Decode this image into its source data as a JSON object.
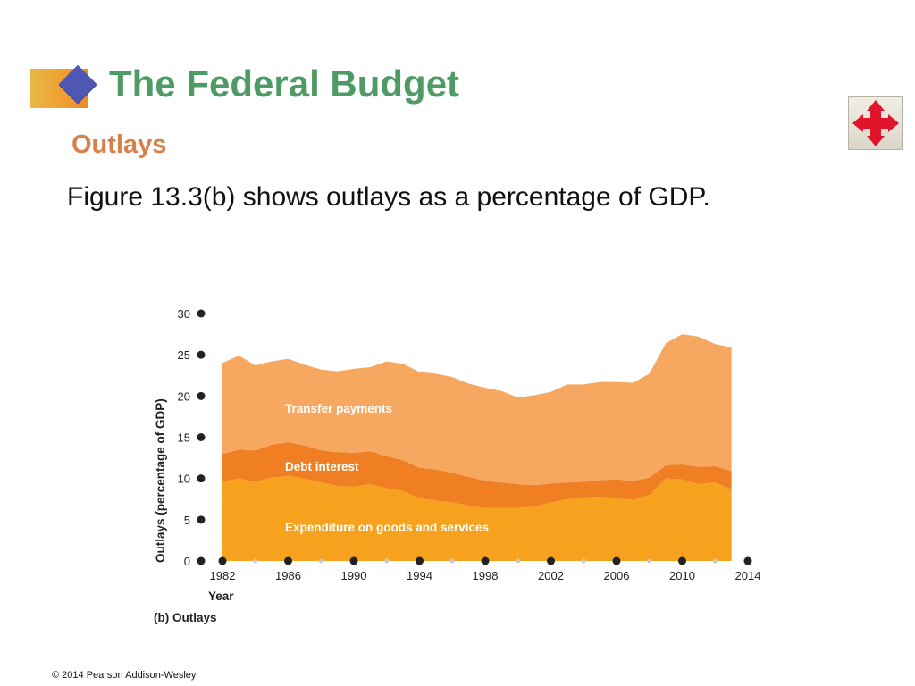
{
  "slide": {
    "title": "The Federal Budget",
    "subtitle": "Outlays",
    "body": "Figure 13.3(b) shows outlays as a percentage of GDP.",
    "copyright": "© 2014 Pearson Addison-Wesley",
    "nav_icon": "four-way-arrows-icon"
  },
  "colors": {
    "title": "#4f9b66",
    "subtitle": "#d7804a",
    "transfer_payments": "#f6a760",
    "debt_interest": "#ef7f22",
    "goods_services": "#f6a21e",
    "nav_arrows": "#e0142a"
  },
  "chart_data": {
    "type": "area",
    "stacked": true,
    "ylabel": "Outlays (percentage of GDP)",
    "xlabel": "Year",
    "caption": "(b) Outlays",
    "ylim": [
      0,
      30
    ],
    "yticks": [
      0,
      5,
      10,
      15,
      20,
      25,
      30
    ],
    "xlim": [
      1982,
      2014
    ],
    "xticks": [
      1982,
      1986,
      1990,
      1994,
      1998,
      2002,
      2006,
      2010,
      2014
    ],
    "x": [
      1982,
      1983,
      1984,
      1985,
      1986,
      1987,
      1988,
      1989,
      1990,
      1991,
      1992,
      1993,
      1994,
      1995,
      1996,
      1997,
      1998,
      1999,
      2000,
      2001,
      2002,
      2003,
      2004,
      2005,
      2006,
      2007,
      2008,
      2009,
      2010,
      2011,
      2012,
      2013
    ],
    "series": [
      {
        "name": "Expenditure on goods and services",
        "values": [
          9.6,
          10.0,
          9.6,
          10.1,
          10.3,
          10.0,
          9.5,
          9.1,
          9.0,
          9.3,
          8.8,
          8.5,
          7.6,
          7.3,
          7.1,
          6.7,
          6.4,
          6.4,
          6.4,
          6.6,
          7.1,
          7.5,
          7.7,
          7.8,
          7.6,
          7.4,
          8.0,
          10.0,
          9.9,
          9.3,
          9.5,
          8.7
        ]
      },
      {
        "name": "Debt interest",
        "values": [
          3.4,
          3.5,
          3.8,
          4.0,
          4.1,
          4.0,
          3.9,
          4.1,
          4.1,
          4.0,
          3.9,
          3.7,
          3.7,
          3.8,
          3.6,
          3.5,
          3.3,
          3.1,
          2.9,
          2.6,
          2.3,
          2.0,
          1.9,
          2.0,
          2.3,
          2.3,
          2.1,
          1.6,
          1.8,
          2.1,
          2.0,
          2.2
        ]
      },
      {
        "name": "Transfer payments",
        "values": [
          11.0,
          11.4,
          10.3,
          10.1,
          10.1,
          9.8,
          9.8,
          9.8,
          10.2,
          10.2,
          11.5,
          11.7,
          11.6,
          11.6,
          11.6,
          11.3,
          11.3,
          11.1,
          10.5,
          10.9,
          11.1,
          11.9,
          11.8,
          11.9,
          11.8,
          11.9,
          12.6,
          14.8,
          15.8,
          15.8,
          14.8,
          15.0
        ]
      }
    ]
  }
}
